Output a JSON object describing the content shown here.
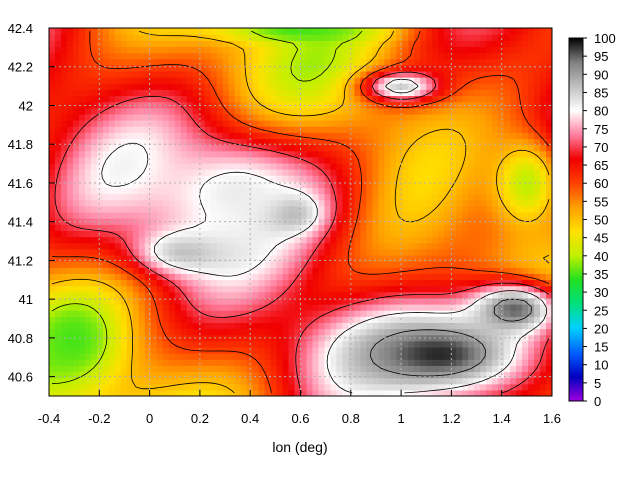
{
  "chart_data": {
    "type": "heatmap",
    "title": "",
    "xlabel": "lon (deg)",
    "ylabel": "",
    "xlim": [
      -0.4,
      1.6
    ],
    "ylim": [
      40.5,
      42.4
    ],
    "xticks": [
      "-0.4",
      "-0.2",
      "0",
      "0.2",
      "0.4",
      "0.6",
      "0.8",
      "1",
      "1.2",
      "1.4",
      "1.6"
    ],
    "yticks": [
      "40.6",
      "40.8",
      "41",
      "41.2",
      "41.4",
      "41.6",
      "41.8",
      "42",
      "42.2",
      "42.4"
    ],
    "colorbar": {
      "range": [
        0,
        100
      ],
      "ticks": [
        "0",
        "5",
        "10",
        "15",
        "20",
        "25",
        "30",
        "35",
        "40",
        "45",
        "50",
        "55",
        "60",
        "65",
        "70",
        "75",
        "80",
        "85",
        "90",
        "95",
        "100"
      ],
      "colors": [
        "#a000e0",
        "#0000c0",
        "#0060ff",
        "#00d0ff",
        "#00e080",
        "#20e020",
        "#c0f000",
        "#ffe000",
        "#ffa000",
        "#ff4000",
        "#f00000",
        "#ff80a0",
        "#ffffff",
        "#c0c0c0",
        "#808080",
        "#000000"
      ]
    },
    "grid": true,
    "contours": true,
    "features": [
      {
        "lon": 0.55,
        "lat": 41.45,
        "value": 95,
        "radius_lon": 0.12,
        "radius_lat": 0.1
      },
      {
        "lon": 0.15,
        "lat": 41.25,
        "value": 88,
        "radius_lon": 0.2,
        "radius_lat": 0.12
      },
      {
        "lon": 0.35,
        "lat": 41.55,
        "value": 82,
        "radius_lon": 0.35,
        "radius_lat": 0.3
      },
      {
        "lon": 1.0,
        "lat": 42.1,
        "value": 85,
        "radius_lon": 0.15,
        "radius_lat": 0.08
      },
      {
        "lon": 1.15,
        "lat": 40.72,
        "value": 98,
        "radius_lon": 0.45,
        "radius_lat": 0.25
      },
      {
        "lon": 1.45,
        "lat": 40.95,
        "value": 95,
        "radius_lon": 0.2,
        "radius_lat": 0.15
      },
      {
        "lon": -0.3,
        "lat": 40.8,
        "value": 35,
        "radius_lon": 0.15,
        "radius_lat": 0.2
      },
      {
        "lon": 1.5,
        "lat": 41.6,
        "value": 40,
        "radius_lon": 0.15,
        "radius_lat": 0.25
      },
      {
        "lon": 0.6,
        "lat": 42.38,
        "value": 35,
        "radius_lon": 0.3,
        "radius_lat": 0.05
      }
    ]
  }
}
